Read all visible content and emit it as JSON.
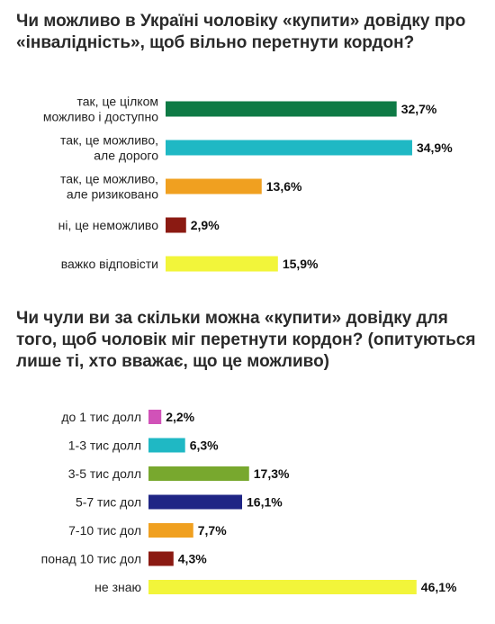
{
  "chart_data": [
    {
      "type": "bar",
      "orientation": "horizontal",
      "title": "Чи можливо в Україні чоловіку «купити» довідку про «інвалідність», щоб вільно перетнути кордон?",
      "categories": [
        [
          "так, це цілком",
          "можливо і доступно"
        ],
        [
          "так, це можливо,",
          "але дорого"
        ],
        [
          "так, це можливо,",
          "але ризиковано"
        ],
        [
          "ні, це неможливо"
        ],
        [
          "важко відповісти"
        ]
      ],
      "values": [
        32.7,
        34.9,
        13.6,
        2.9,
        15.9
      ],
      "value_labels": [
        "32,7%",
        "34,9%",
        "13,6%",
        "2,9%",
        "15,9%"
      ],
      "colors": [
        "#0e7a45",
        "#1fb8c4",
        "#f0a020",
        "#8b1a12",
        "#f2f53a"
      ],
      "xlim": [
        0,
        40
      ]
    },
    {
      "type": "bar",
      "orientation": "horizontal",
      "title": "Чи чули ви за скільки можна «купити» довідку для того, щоб чоловік міг перетнути кордон? (опитуються лише ті, хто вважає, що це можливо)",
      "categories": [
        [
          "до 1 тис долл"
        ],
        [
          "1-3 тис долл"
        ],
        [
          "3-5 тис долл"
        ],
        [
          "5-7 тис дол"
        ],
        [
          "7-10 тис дол"
        ],
        [
          "понад 10 тис дол"
        ],
        [
          "не знаю"
        ]
      ],
      "values": [
        2.2,
        6.3,
        17.3,
        16.1,
        7.7,
        4.3,
        46.1
      ],
      "value_labels": [
        "2,2%",
        "6,3%",
        "17,3%",
        "16,1%",
        "7,7%",
        "4,3%",
        "46,1%"
      ],
      "colors": [
        "#d152b8",
        "#1fb8c4",
        "#78a82e",
        "#1f2585",
        "#f0a020",
        "#8b1a12",
        "#f2f53a"
      ],
      "xlim": [
        0,
        50
      ]
    }
  ]
}
